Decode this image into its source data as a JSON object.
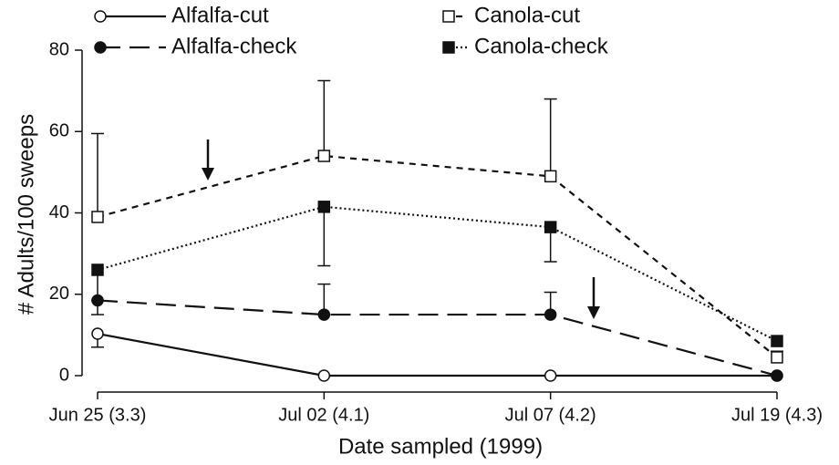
{
  "chart_data": {
    "type": "line",
    "x_label": "Date sampled (1999)",
    "y_label": "# Adults/100 sweeps",
    "categories": [
      "Jun 25 (3.3)",
      "Jul 02 (4.1)",
      "Jul 07 (4.2)",
      "Jul 19 (4.3)"
    ],
    "ylim": [
      0,
      80
    ],
    "yticks": [
      0,
      20,
      40,
      60,
      80
    ],
    "grid": false,
    "legend_position": "top",
    "series": [
      {
        "name": "Alfalfa-cut",
        "color": "#111111",
        "dash": "solid",
        "marker": "circle-open",
        "values": [
          10.3,
          0,
          0,
          0
        ],
        "errors": [
          3.3,
          null,
          null,
          null
        ],
        "error_sides": [
          "down",
          null,
          null,
          null
        ]
      },
      {
        "name": "Alfalfa-check",
        "color": "#111111",
        "dash": "long",
        "marker": "circle-filled",
        "values": [
          18.5,
          15,
          15,
          0
        ],
        "errors": [
          3.5,
          7.5,
          5.5,
          null
        ],
        "error_sides": [
          "down",
          "up",
          "up",
          null
        ]
      },
      {
        "name": "Canola-cut",
        "color": "#111111",
        "dash": "short",
        "marker": "square-open",
        "values": [
          39,
          54,
          49,
          4.5
        ],
        "errors": [
          20.5,
          18.5,
          19,
          1.5
        ],
        "error_sides": [
          "up",
          "up",
          "up",
          "up"
        ]
      },
      {
        "name": "Canola-check",
        "color": "#111111",
        "dash": "dotted",
        "marker": "square-filled",
        "values": [
          26,
          41.5,
          36.5,
          8.5
        ],
        "errors": [
          7.5,
          14.5,
          8.5,
          null
        ],
        "error_sides": [
          "down",
          "down",
          "down",
          null
        ]
      }
    ]
  }
}
